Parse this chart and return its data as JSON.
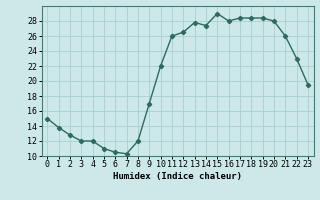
{
  "x": [
    0,
    1,
    2,
    3,
    4,
    5,
    6,
    7,
    8,
    9,
    10,
    11,
    12,
    13,
    14,
    15,
    16,
    17,
    18,
    19,
    20,
    21,
    22,
    23
  ],
  "y": [
    15,
    13.8,
    12.8,
    12,
    12,
    11,
    10.5,
    10.3,
    12,
    17,
    22,
    26,
    26.5,
    27.8,
    27.4,
    29,
    28,
    28.4,
    28.4,
    28.4,
    28,
    26,
    23,
    19.5
  ],
  "line_color": "#2d6b5e",
  "marker": "D",
  "marker_size": 2.2,
  "bg_color": "#cce8e8",
  "grid_color": "#aad0d0",
  "xlabel": "Humidex (Indice chaleur)",
  "ylim": [
    10,
    30
  ],
  "yticks": [
    10,
    12,
    14,
    16,
    18,
    20,
    22,
    24,
    26,
    28
  ],
  "xticks": [
    0,
    1,
    2,
    3,
    4,
    5,
    6,
    7,
    8,
    9,
    10,
    11,
    12,
    13,
    14,
    15,
    16,
    17,
    18,
    19,
    20,
    21,
    22,
    23
  ],
  "xlim": [
    -0.5,
    23.5
  ],
  "xlabel_fontsize": 6.5,
  "tick_fontsize": 6.0,
  "spine_color": "#3d8070"
}
